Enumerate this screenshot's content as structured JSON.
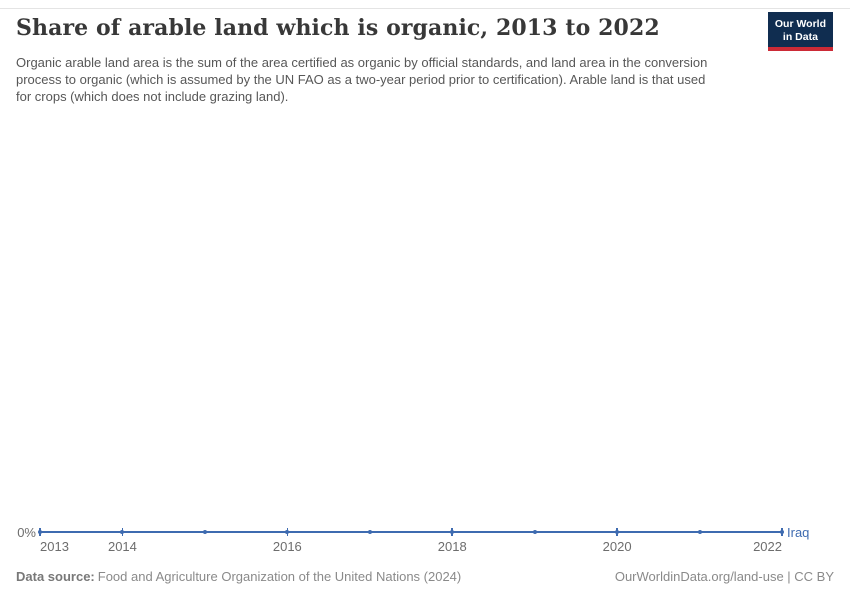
{
  "header": {
    "title": "Share of arable land which is organic, 2013 to 2022",
    "subtitle": "Organic arable land area is the sum of the area certified as organic by official standards, and land area in the conversion process to organic (which is assumed by the UN FAO as a two-year period prior to certification). Arable land is that used for crops (which does not include grazing land).",
    "logo": {
      "line1": "Our World",
      "line2": "in Data",
      "bg_color": "#102d50",
      "accent_color": "#cc2a36"
    }
  },
  "chart": {
    "y_axis_zero_label": "0%",
    "x_tick_labels": [
      "2013",
      "2014",
      "2016",
      "2018",
      "2020",
      "2022"
    ],
    "entity_label": "Iraq",
    "line_color": "#3e6bb0"
  },
  "chart_data": {
    "type": "line",
    "title": "Share of arable land which is organic, 2013 to 2022",
    "x": [
      2013,
      2014,
      2015,
      2016,
      2017,
      2018,
      2019,
      2020,
      2021,
      2022
    ],
    "series": [
      {
        "name": "Iraq",
        "values": [
          0,
          0,
          0,
          0,
          0,
          0,
          0,
          0,
          0,
          0
        ]
      }
    ],
    "unit": "%",
    "xlabel": "",
    "ylabel": "",
    "y_ticks_shown": [
      "0%"
    ],
    "ylim": [
      0,
      0
    ],
    "grid": false,
    "legend_position": "end-of-line-label",
    "markers": true
  },
  "footer": {
    "datasource_label": "Data source:",
    "datasource_text": "Food and Agriculture Organization of the United Nations (2024)",
    "credit": "OurWorldinData.org/land-use | CC BY"
  }
}
